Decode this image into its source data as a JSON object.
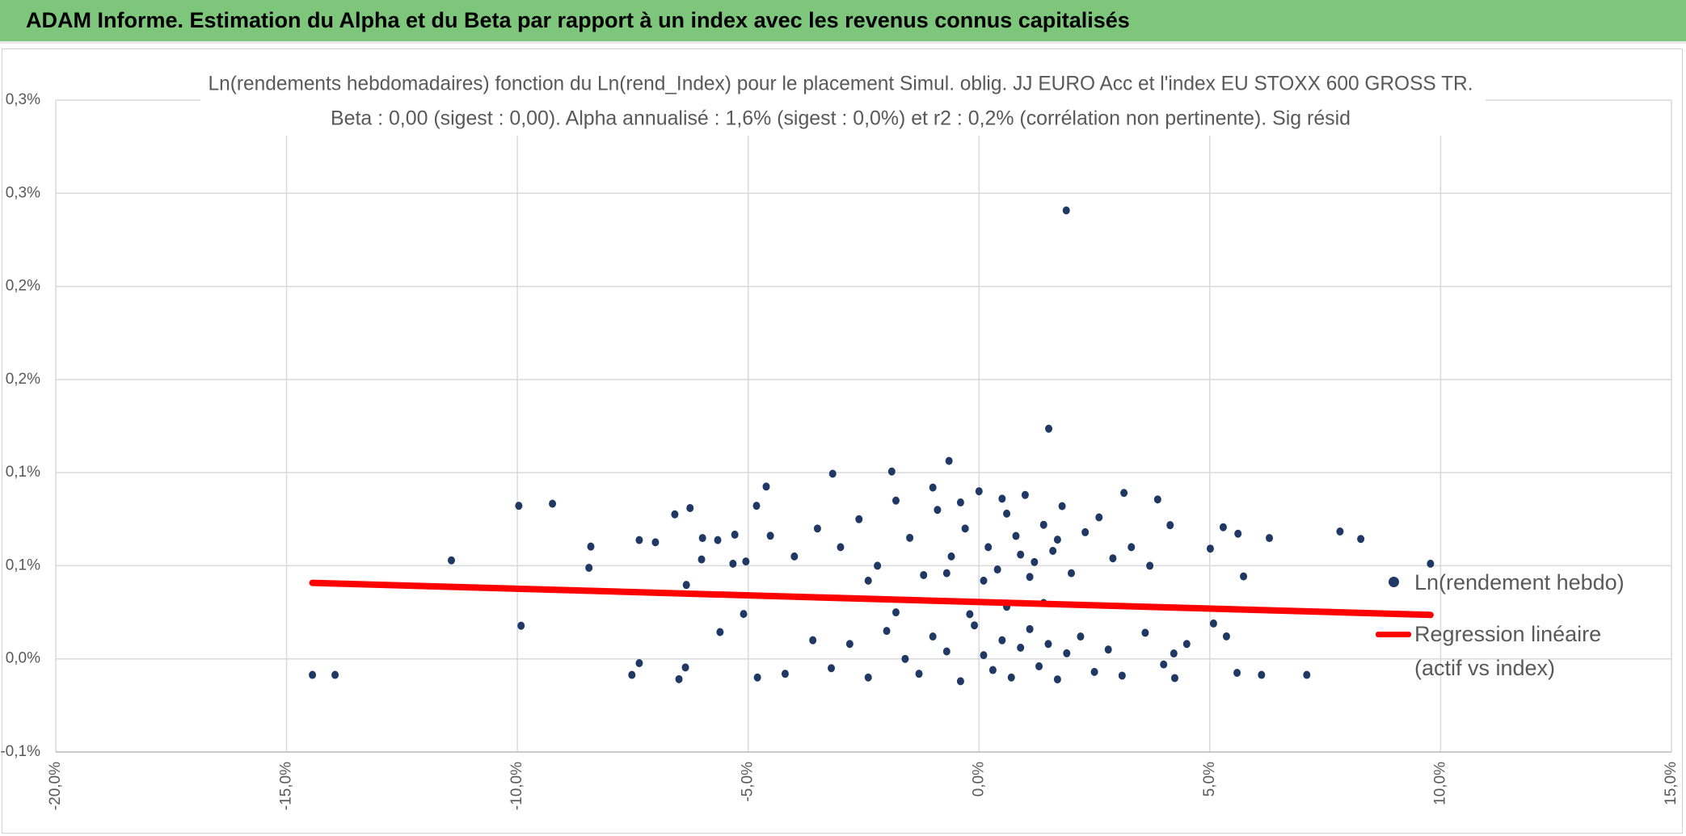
{
  "header": {
    "title": "ADAM Informe. Estimation du Alpha et du Beta par rapport à un index avec les revenus connus capitalisés"
  },
  "chart_data": {
    "type": "scatter",
    "title": "Ln(rendements hebdomadaires) fonction du Ln(rend_Index) pour le placement Simul. oblig. JJ EURO Acc et l'index EU STOXX 600 GROSS TR.",
    "subtitle": "Beta : 0,00 (sigest : 0,00). Alpha annualisé : 1,6% (sigest : 0,0%) et r2 : 0,2% (corrélation non pertinente). Sig résid",
    "xlim": [
      -20,
      15
    ],
    "xticks": [
      {
        "value": -20,
        "label": "-20,0%"
      },
      {
        "value": -15,
        "label": "-15,0%"
      },
      {
        "value": -10,
        "label": "-10,0%"
      },
      {
        "value": -5,
        "label": "-5,0%"
      },
      {
        "value": 0,
        "label": "0,0%"
      },
      {
        "value": 5,
        "label": "5,0%"
      },
      {
        "value": 10,
        "label": "10,0%"
      },
      {
        "value": 15,
        "label": "15,0%"
      }
    ],
    "ylim": [
      -0.05,
      0.3
    ],
    "yticks": [
      {
        "value": -0.05,
        "label": "-0,1%"
      },
      {
        "value": 0,
        "label": "0,0%"
      },
      {
        "value": 0.05,
        "label": "0,1%"
      },
      {
        "value": 0.1,
        "label": "0,1%"
      },
      {
        "value": 0.15,
        "label": "0,2%"
      },
      {
        "value": 0.2,
        "label": "0,2%"
      },
      {
        "value": 0.25,
        "label": "0,3%"
      },
      {
        "value": 0.3,
        "label": "0,3%"
      }
    ],
    "grid": true,
    "legend": "right",
    "series": [
      {
        "name": "Ln(rendement hebdo)",
        "color": "#203864",
        "style": "markers",
        "x": [
          -14.44,
          -13.95,
          -11.43,
          -9.97,
          -9.24,
          -9.92,
          -8.41,
          -8.45,
          -7.36,
          -7.01,
          -7.52,
          -7.36,
          -6.59,
          -6.26,
          -6.5,
          -6.36,
          -6.34,
          -6.01,
          -5.99,
          -5.66,
          -5.61,
          -5.33,
          -5.29,
          -5.1,
          -5.05,
          -4.82,
          -4.61,
          -4.52,
          1.89,
          1.51,
          -0.65,
          -1.89,
          -3.17,
          5.59,
          6.12,
          7.1,
          5.61,
          6.29,
          5.29,
          7.82,
          8.27,
          9.78,
          5.73,
          5.36,
          5.08,
          5.01,
          4.22,
          4.24,
          3.87,
          3.14,
          4.14,
          -3.0,
          -2.6,
          -2.2,
          -1.8,
          -1.5,
          -1.2,
          -0.9,
          -0.6,
          -0.3,
          0,
          0.2,
          0.4,
          0.6,
          0.8,
          1.0,
          1.2,
          1.4,
          1.6,
          1.8,
          2.0,
          2.3,
          2.6,
          2.9,
          -2.4,
          -1.0,
          0.1,
          0.5,
          1.1,
          -0.4,
          1.7,
          -3.5,
          -4.0,
          3.3,
          3.7,
          -0.7,
          0.9,
          -3.2,
          -2.8,
          -2.4,
          -2.0,
          -1.6,
          -1.3,
          -1.0,
          -0.7,
          -0.4,
          -0.1,
          0.1,
          0.3,
          0.5,
          0.7,
          0.9,
          1.1,
          1.3,
          1.5,
          1.7,
          1.9,
          2.2,
          2.5,
          2.8,
          3.1,
          -3.6,
          -4.2,
          3.6,
          4.0,
          -0.2,
          0.6,
          -1.8,
          1.4,
          -4.8,
          4.5
        ],
        "values": [
          -0.0086,
          -0.0086,
          0.0529,
          0.0822,
          0.0833,
          0.0178,
          0.0603,
          0.0489,
          0.0638,
          0.0626,
          -0.0086,
          -0.0023,
          0.0776,
          0.081,
          -0.0109,
          -0.0046,
          0.0397,
          0.0534,
          0.0649,
          0.0638,
          0.0144,
          0.0511,
          0.0667,
          0.0241,
          0.0523,
          0.0822,
          0.0925,
          0.0661,
          0.2408,
          0.1236,
          0.1063,
          0.1006,
          0.0994,
          -0.0075,
          -0.0086,
          -0.0086,
          0.0672,
          0.0649,
          0.0707,
          0.0684,
          0.0644,
          0.0511,
          0.0443,
          0.0121,
          0.019,
          0.0592,
          0.0029,
          -0.0103,
          0.0856,
          0.0891,
          0.0718,
          0.06,
          0.075,
          0.05,
          0.085,
          0.065,
          0.045,
          0.08,
          0.055,
          0.07,
          0.09,
          0.06,
          0.048,
          0.078,
          0.066,
          0.088,
          0.052,
          0.072,
          0.058,
          0.082,
          0.046,
          0.068,
          0.076,
          0.054,
          0.042,
          0.092,
          0.042,
          0.086,
          0.044,
          0.084,
          0.064,
          0.07,
          0.055,
          0.06,
          0.05,
          0.046,
          0.056,
          -0.005,
          0.008,
          -0.01,
          0.015,
          0.0,
          -0.008,
          0.012,
          0.004,
          -0.012,
          0.018,
          0.002,
          -0.006,
          0.01,
          -0.01,
          0.006,
          0.016,
          -0.004,
          0.008,
          -0.011,
          0.003,
          0.012,
          -0.007,
          0.005,
          -0.009,
          0.01,
          -0.008,
          0.014,
          -0.003,
          0.024,
          0.028,
          0.025,
          0.03,
          -0.01,
          0.008
        ]
      },
      {
        "name": "Regression linéaire (actif vs index)",
        "color": "#ff0000",
        "style": "line",
        "x": [
          -14.44,
          9.78
        ],
        "values": [
          0.0408,
          0.0236
        ]
      }
    ]
  }
}
